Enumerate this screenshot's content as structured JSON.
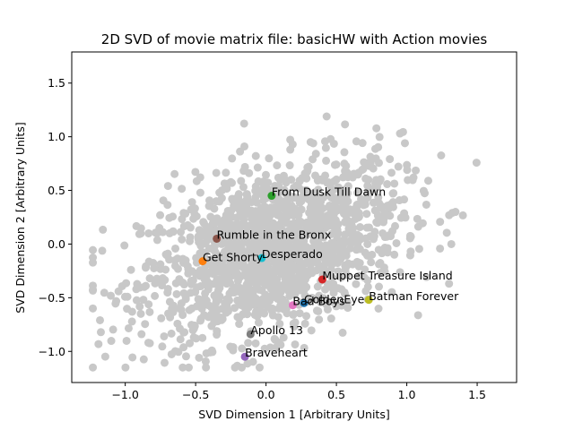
{
  "chart_data": {
    "type": "scatter",
    "title": "2D SVD of movie matrix file: basicHW with Action movies",
    "xlabel": "SVD Dimension 1 [Arbitrary Units]",
    "ylabel": "SVD Dimension 2 [Arbitrary Units]",
    "xlim": [
      -1.38,
      1.78
    ],
    "ylim": [
      -1.29,
      1.79
    ],
    "xticks": [
      -1.0,
      -0.5,
      0.0,
      0.5,
      1.0,
      1.5
    ],
    "xtick_labels": [
      "−1.0",
      "−0.5",
      "0.0",
      "0.5",
      "1.0",
      "1.5"
    ],
    "yticks": [
      -1.0,
      -0.5,
      0.0,
      0.5,
      1.0,
      1.5
    ],
    "ytick_labels": [
      "−1.0",
      "−0.5",
      "0.0",
      "0.5",
      "1.0",
      "1.5"
    ],
    "grid": false,
    "background_color": "#c8c8c8",
    "background_point_count": 1600,
    "highlighted": [
      {
        "label": "From Dusk Till Dawn",
        "x": 0.04,
        "y": 0.45,
        "color": "#2ca02c"
      },
      {
        "label": "Rumble in the Bronx",
        "x": -0.35,
        "y": 0.05,
        "color": "#8c564b"
      },
      {
        "label": "Get Shorty",
        "x": -0.45,
        "y": -0.16,
        "color": "#ff7f0e"
      },
      {
        "label": "Desperado",
        "x": -0.03,
        "y": -0.13,
        "color": "#17becf"
      },
      {
        "label": "Muppet Treasure Island",
        "x": 0.4,
        "y": -0.33,
        "color": "#d62728"
      },
      {
        "label": "Batman Forever",
        "x": 0.73,
        "y": -0.52,
        "color": "#bcbd22"
      },
      {
        "label": "GoldenEye",
        "x": 0.27,
        "y": -0.55,
        "color": "#1f77b4"
      },
      {
        "label": "Bad Boys",
        "x": 0.19,
        "y": -0.57,
        "color": "#e377c2"
      },
      {
        "label": "Apollo 13",
        "x": -0.11,
        "y": -0.84,
        "color": "#7f7f7f"
      },
      {
        "label": "Braveheart",
        "x": -0.15,
        "y": -1.05,
        "color": "#9467bd"
      }
    ]
  }
}
